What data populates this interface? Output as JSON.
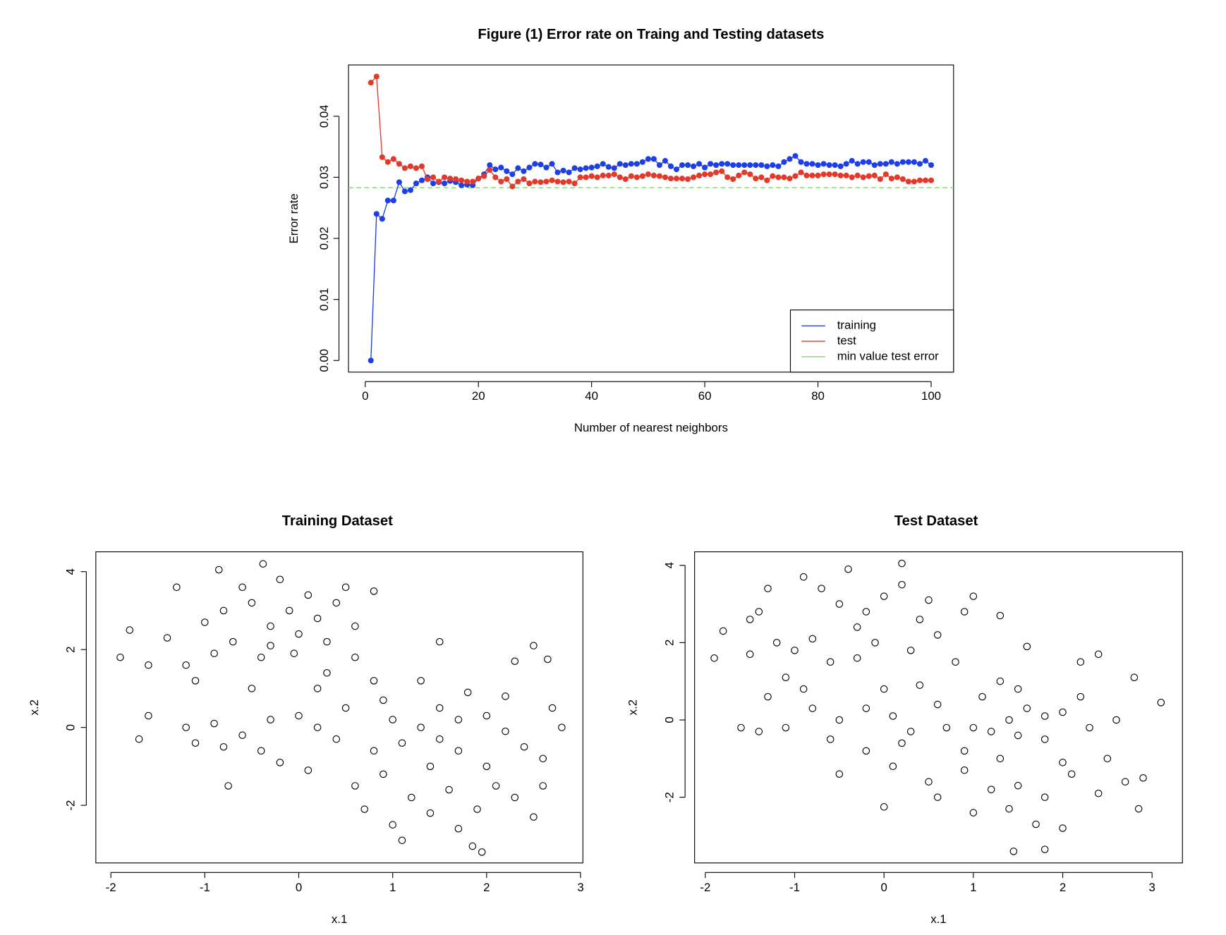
{
  "chart_data": [
    {
      "type": "line",
      "title": "Figure (1) Error rate on Traing and Testing datasets",
      "xlabel": "Number of nearest neighbors",
      "ylabel": "Error rate",
      "x": [
        1,
        2,
        3,
        4,
        5,
        6,
        7,
        8,
        9,
        10,
        11,
        12,
        13,
        14,
        15,
        16,
        17,
        18,
        19,
        20,
        21,
        22,
        23,
        24,
        25,
        26,
        27,
        28,
        29,
        30,
        31,
        32,
        33,
        34,
        35,
        36,
        37,
        38,
        39,
        40,
        41,
        42,
        43,
        44,
        45,
        46,
        47,
        48,
        49,
        50,
        51,
        52,
        53,
        54,
        55,
        56,
        57,
        58,
        59,
        60,
        61,
        62,
        63,
        64,
        65,
        66,
        67,
        68,
        69,
        70,
        71,
        72,
        73,
        74,
        75,
        76,
        77,
        78,
        79,
        80,
        81,
        82,
        83,
        84,
        85,
        86,
        87,
        88,
        89,
        90,
        91,
        92,
        93,
        94,
        95,
        96,
        97,
        98,
        99,
        100
      ],
      "series": [
        {
          "name": "training",
          "color": "#1f3fe6",
          "values": [
            0.0,
            0.024,
            0.0232,
            0.0262,
            0.0262,
            0.0292,
            0.0277,
            0.0279,
            0.029,
            0.0295,
            0.03,
            0.029,
            0.0292,
            0.029,
            0.0294,
            0.0292,
            0.0287,
            0.0288,
            0.0287,
            0.0298,
            0.0305,
            0.032,
            0.0313,
            0.0316,
            0.031,
            0.0305,
            0.0315,
            0.031,
            0.0316,
            0.0322,
            0.0321,
            0.0316,
            0.0322,
            0.0308,
            0.0311,
            0.0308,
            0.0315,
            0.0313,
            0.0315,
            0.0316,
            0.0318,
            0.0322,
            0.0317,
            0.0315,
            0.0322,
            0.032,
            0.0322,
            0.0322,
            0.0325,
            0.033,
            0.033,
            0.032,
            0.0327,
            0.0318,
            0.0313,
            0.032,
            0.032,
            0.0318,
            0.0322,
            0.0316,
            0.0322,
            0.032,
            0.0322,
            0.0322,
            0.032,
            0.032,
            0.032,
            0.032,
            0.032,
            0.032,
            0.0318,
            0.032,
            0.0318,
            0.0325,
            0.033,
            0.0335,
            0.0325,
            0.0322,
            0.0322,
            0.032,
            0.0322,
            0.032,
            0.032,
            0.0318,
            0.0322,
            0.0327,
            0.0322,
            0.0325,
            0.0325,
            0.032,
            0.0322,
            0.0322,
            0.0325,
            0.0322,
            0.0325,
            0.0325,
            0.0325,
            0.0322,
            0.0327,
            0.032
          ]
        },
        {
          "name": "test",
          "color": "#e23a2a",
          "values": [
            0.0455,
            0.0465,
            0.0333,
            0.0325,
            0.033,
            0.0322,
            0.0315,
            0.0318,
            0.0315,
            0.0318,
            0.0297,
            0.03,
            0.0293,
            0.03,
            0.0298,
            0.0297,
            0.0295,
            0.0293,
            0.0293,
            0.0298,
            0.0302,
            0.0312,
            0.03,
            0.0293,
            0.0297,
            0.0285,
            0.0293,
            0.0297,
            0.029,
            0.0293,
            0.0292,
            0.0293,
            0.0295,
            0.0293,
            0.0292,
            0.0293,
            0.029,
            0.03,
            0.03,
            0.0302,
            0.03,
            0.0303,
            0.0303,
            0.0305,
            0.03,
            0.0297,
            0.0302,
            0.03,
            0.0302,
            0.0305,
            0.0303,
            0.0302,
            0.03,
            0.0298,
            0.0298,
            0.0298,
            0.0297,
            0.03,
            0.0303,
            0.0305,
            0.0305,
            0.0308,
            0.031,
            0.03,
            0.0297,
            0.0303,
            0.0308,
            0.0305,
            0.0298,
            0.03,
            0.0295,
            0.0302,
            0.03,
            0.03,
            0.0298,
            0.0302,
            0.0308,
            0.0303,
            0.0303,
            0.0303,
            0.0305,
            0.0305,
            0.0305,
            0.0303,
            0.0303,
            0.03,
            0.0303,
            0.03,
            0.0302,
            0.0303,
            0.0297,
            0.0305,
            0.0298,
            0.03,
            0.0297,
            0.0293,
            0.0293,
            0.0295,
            0.0295,
            0.0295
          ]
        }
      ],
      "hline": {
        "name": "min value test error",
        "value": 0.0283,
        "color": "#7fd86a"
      },
      "legend": "bottomright",
      "xlim": [
        -2.96,
        103.96
      ],
      "xticks": [
        0,
        20,
        40,
        60,
        80,
        100
      ],
      "ylim": [
        -0.0019,
        0.0484
      ],
      "yticks": [
        {
          "value": 0,
          "label": "0.00"
        },
        {
          "value": 0.01,
          "label": "0.01"
        },
        {
          "value": 0.02,
          "label": "0.02"
        },
        {
          "value": 0.03,
          "label": "0.03"
        },
        {
          "value": 0.04,
          "label": "0.04"
        }
      ]
    },
    {
      "type": "scatter",
      "title": "Training Dataset",
      "xlabel": "x.1",
      "ylabel": "x.2",
      "color": "#000000",
      "x": [
        -0.3,
        -0.1,
        0.0,
        -0.5,
        -0.7,
        -0.9,
        -1.2,
        -1.0,
        -0.4,
        0.2,
        0.1,
        -0.2,
        -0.6,
        -1.4,
        -1.6,
        -1.9,
        -1.8,
        -0.8,
        0.4,
        0.6,
        -0.3,
        -1.1,
        -0.5,
        -0.85,
        -0.38,
        0.5,
        0.8,
        -1.3,
        0.3,
        -0.05,
        0.3,
        0.6,
        0.0,
        -0.3,
        -0.6,
        -0.9,
        -1.1,
        -0.4,
        0.2,
        0.5,
        0.4,
        -0.2,
        0.1,
        -0.8,
        -1.2,
        -1.7,
        -1.6,
        -0.75,
        0.2,
        0.8,
        1.3,
        1.5,
        1.1,
        1.7,
        2.0,
        2.2,
        1.8,
        1.4,
        1.0,
        0.8,
        1.6,
        1.9,
        1.4,
        2.1,
        2.3,
        1.2,
        1.7,
        1.85,
        1.95,
        2.5,
        2.6,
        2.7,
        2.8,
        2.4,
        2.5,
        1.5,
        1.0,
        0.7,
        1.1,
        0.9,
        2.2,
        2.6,
        1.3,
        1.7,
        2.0,
        0.6,
        1.5,
        0.9,
        2.3,
        2.65
      ],
      "y": [
        2.6,
        3.0,
        2.4,
        3.2,
        2.2,
        1.9,
        1.6,
        2.7,
        1.8,
        2.8,
        3.4,
        3.8,
        3.6,
        2.3,
        1.6,
        1.8,
        2.5,
        3.0,
        3.2,
        2.6,
        2.1,
        1.2,
        1.0,
        4.05,
        4.2,
        3.6,
        3.5,
        3.6,
        2.2,
        1.9,
        1.4,
        1.8,
        0.3,
        0.2,
        -0.2,
        0.1,
        -0.4,
        -0.6,
        0.0,
        0.5,
        -0.3,
        -0.9,
        -1.1,
        -0.5,
        0.0,
        -0.3,
        0.3,
        -1.5,
        1.0,
        1.2,
        0.0,
        0.5,
        -0.4,
        -0.6,
        0.3,
        0.8,
        0.9,
        -1.0,
        0.2,
        -0.6,
        -1.6,
        -2.1,
        -2.2,
        -1.5,
        -1.8,
        -1.8,
        -2.6,
        -3.05,
        -3.2,
        -2.3,
        -1.5,
        0.5,
        0.0,
        -0.5,
        2.1,
        2.2,
        -2.5,
        -2.1,
        -2.9,
        -1.2,
        -0.1,
        -0.8,
        1.2,
        0.2,
        -1.0,
        -1.5,
        -0.3,
        0.7,
        1.7,
        1.75
      ],
      "xlim": [
        -2.16,
        3.025
      ],
      "xticks": [
        -2,
        -1,
        0,
        1,
        2,
        3
      ],
      "ylim": [
        -3.48,
        4.51
      ],
      "yticks": [
        -2,
        0,
        2,
        4
      ]
    },
    {
      "type": "scatter",
      "title": "Test Dataset",
      "xlabel": "x.1",
      "ylabel": "x.2",
      "color": "#000000",
      "x": [
        -0.2,
        0.0,
        -0.5,
        -0.3,
        -0.8,
        -1.0,
        -1.2,
        -1.5,
        -1.9,
        -1.8,
        -1.5,
        -1.3,
        -0.7,
        -0.4,
        0.2,
        0.2,
        0.4,
        0.6,
        0.9,
        1.0,
        -0.1,
        0.3,
        -0.6,
        -1.1,
        -0.3,
        0.8,
        1.3,
        -1.4,
        0.5,
        -0.9,
        0.1,
        -0.2,
        -0.5,
        -0.8,
        -1.1,
        -1.4,
        -1.6,
        -0.6,
        0.3,
        0.6,
        0.1,
        -0.2,
        -0.5,
        0.0,
        -0.9,
        0.0,
        0.4,
        -1.3,
        0.7,
        0.2,
        1.4,
        1.6,
        1.2,
        1.8,
        2.0,
        2.2,
        1.5,
        1.3,
        1.0,
        0.9,
        1.5,
        1.8,
        1.4,
        2.1,
        2.4,
        1.2,
        1.7,
        1.45,
        1.8,
        2.7,
        2.9,
        2.8,
        3.1,
        2.6,
        2.2,
        1.6,
        1.0,
        0.6,
        2.0,
        0.9,
        2.3,
        2.5,
        1.3,
        1.8,
        2.0,
        0.5,
        1.5,
        1.1,
        2.4,
        2.85
      ],
      "y": [
        2.8,
        3.2,
        3.0,
        2.4,
        2.1,
        1.8,
        2.0,
        1.7,
        1.6,
        2.3,
        2.6,
        3.4,
        3.4,
        3.9,
        4.05,
        3.5,
        2.6,
        2.2,
        2.8,
        3.2,
        2.0,
        1.8,
        1.5,
        1.1,
        1.6,
        1.5,
        2.7,
        2.8,
        3.1,
        3.7,
        0.1,
        0.3,
        0.0,
        0.3,
        -0.2,
        -0.3,
        -0.2,
        -0.5,
        -0.3,
        0.4,
        -1.2,
        -0.8,
        -1.4,
        0.8,
        0.8,
        -2.25,
        0.9,
        0.6,
        -0.2,
        -0.6,
        0.0,
        0.3,
        -0.3,
        -0.5,
        0.2,
        0.6,
        0.8,
        -1.0,
        -0.2,
        -0.8,
        -1.7,
        -2.0,
        -2.3,
        -1.4,
        -1.9,
        -1.8,
        -2.7,
        -3.4,
        -3.35,
        -1.6,
        -1.5,
        1.1,
        0.45,
        0.0,
        1.5,
        1.9,
        -2.4,
        -2.0,
        -2.8,
        -1.3,
        -0.2,
        -1.0,
        1.0,
        0.1,
        -1.1,
        -1.6,
        -0.4,
        0.6,
        1.7,
        -2.3
      ],
      "xlim": [
        -2.12,
        3.34
      ],
      "xticks": [
        -2,
        -1,
        0,
        1,
        2,
        3
      ],
      "ylim": [
        -3.7,
        4.35
      ],
      "yticks": [
        -2,
        0,
        2,
        4
      ]
    }
  ]
}
